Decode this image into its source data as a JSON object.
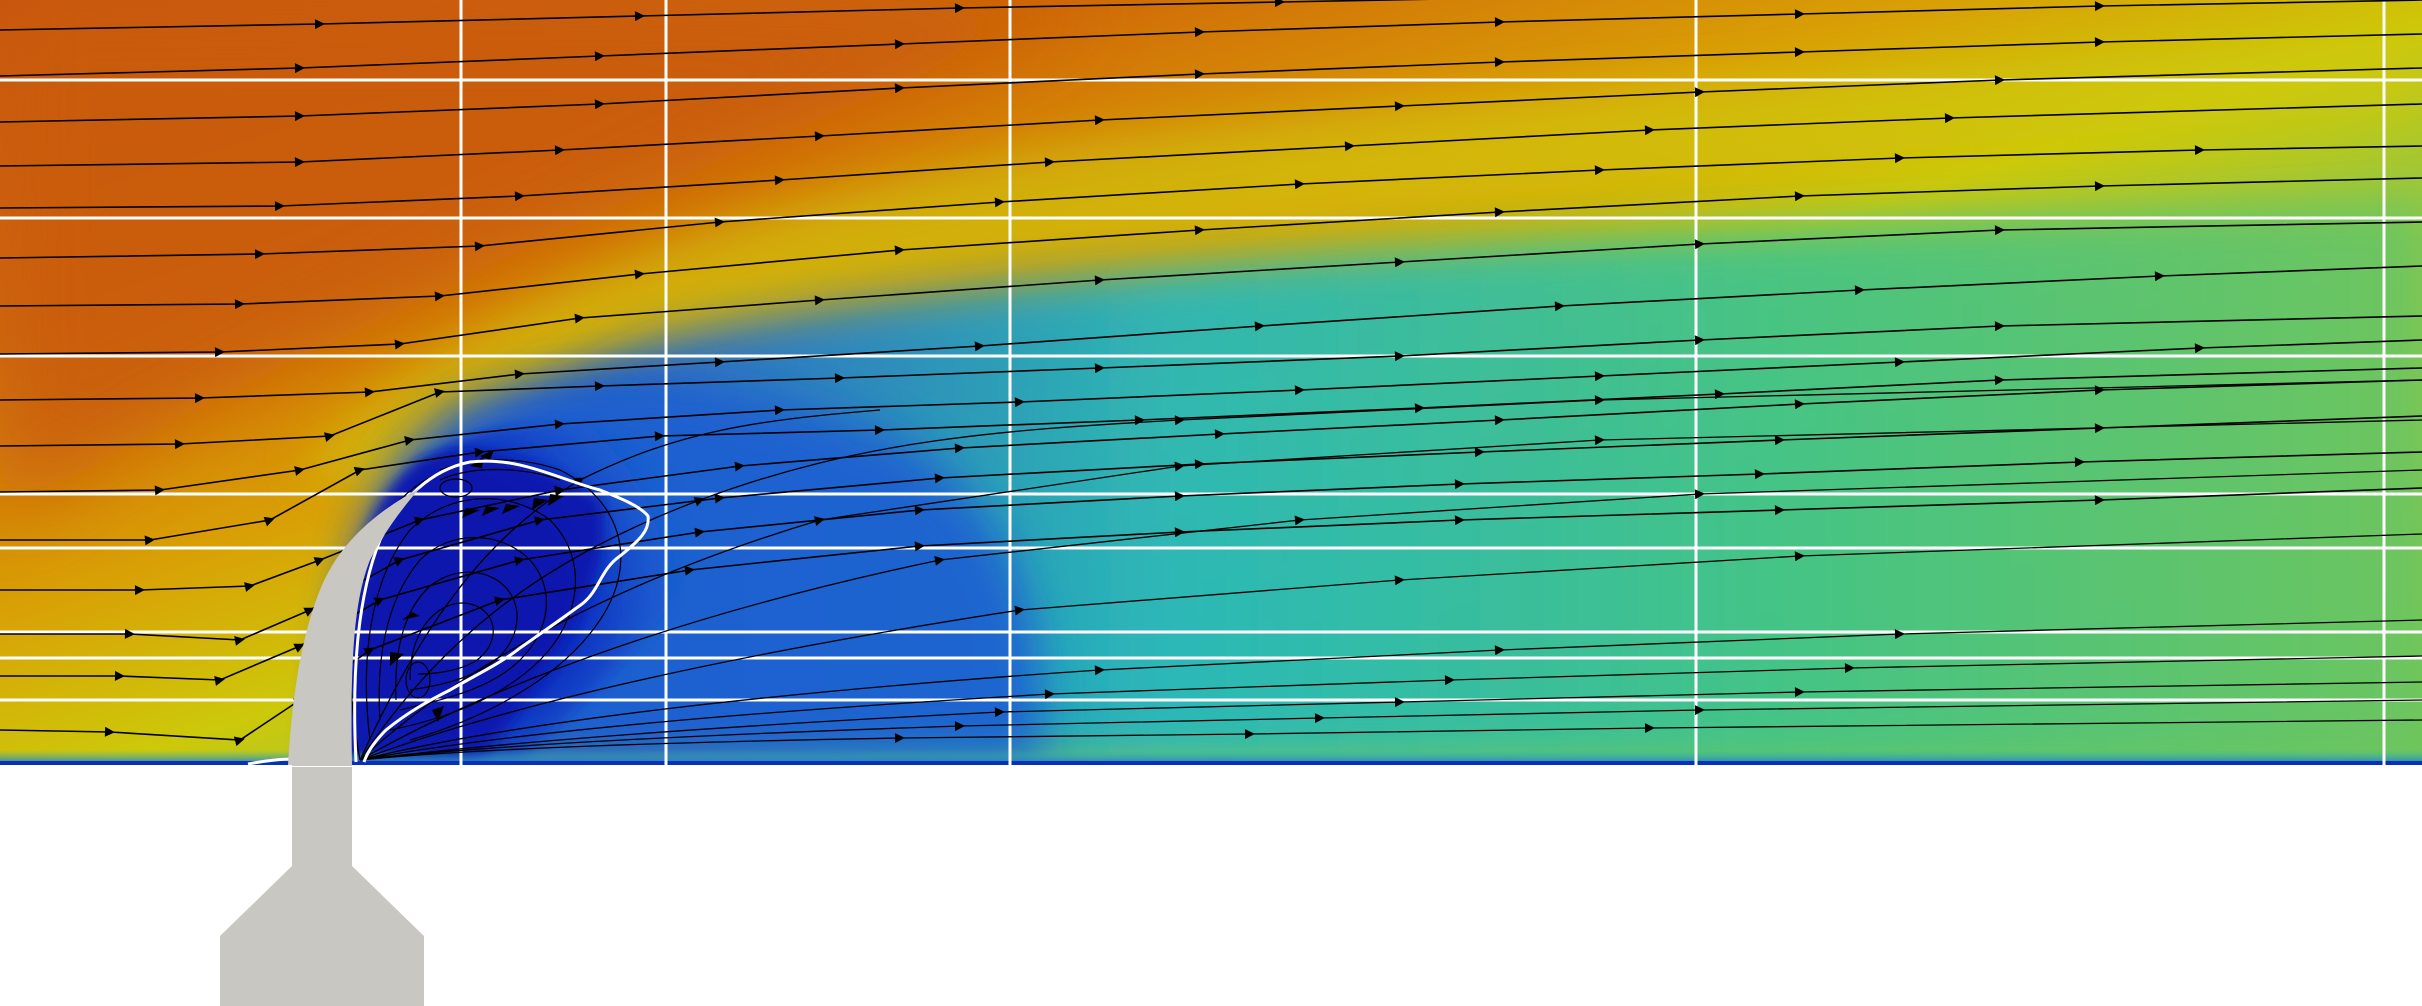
{
  "figure": {
    "kind": "flow-field-visualization",
    "colormap": [
      "#0a1fb8",
      "#1a7ad6",
      "#20c2bb",
      "#5ec46a",
      "#9cc63c",
      "#cfc707",
      "#dc9a0a",
      "#cf6408",
      "#c95508"
    ],
    "grid_color": "#ffffff",
    "streamline_color": "#000000",
    "separation_contour_color": "#ffffff",
    "solid_body_color": "#c9c7c2",
    "background_color": "#ffffff",
    "streamlines_with_arrows": true,
    "grid_lines": true,
    "text_labels": []
  }
}
